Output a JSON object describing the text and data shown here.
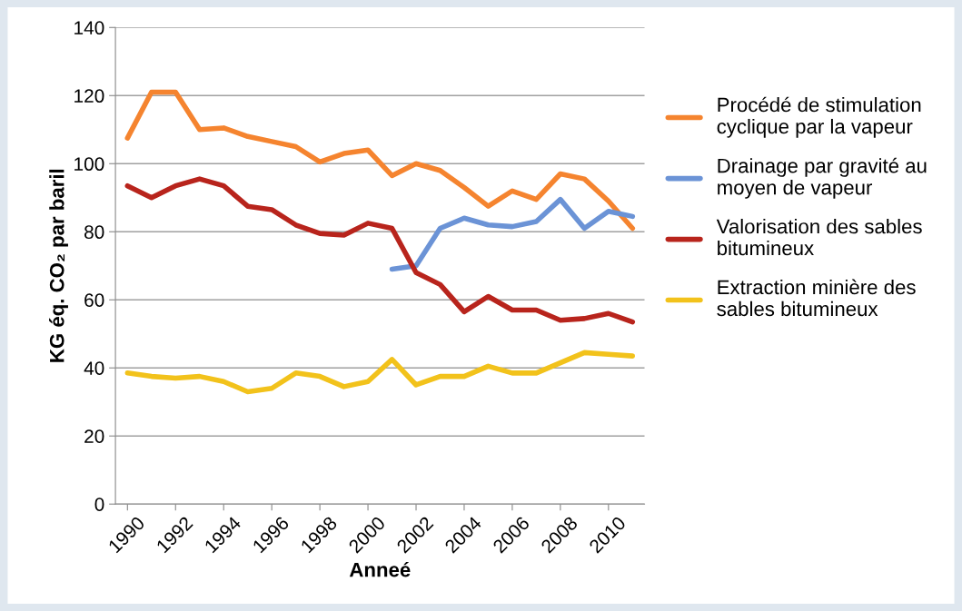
{
  "chart_data": {
    "type": "line",
    "xlabel": "Anneé",
    "ylabel": "KG éq. CO₂ par baril",
    "x": [
      1990,
      1991,
      1992,
      1993,
      1994,
      1995,
      1996,
      1997,
      1998,
      1999,
      2000,
      2001,
      2002,
      2003,
      2004,
      2005,
      2006,
      2007,
      2008,
      2009,
      2010,
      2011
    ],
    "xlim": [
      1989.5,
      2011.5
    ],
    "xticks": [
      1990,
      1992,
      1994,
      1996,
      1998,
      2000,
      2002,
      2004,
      2006,
      2008,
      2010
    ],
    "ylim": [
      0,
      140
    ],
    "yticks": [
      0,
      20,
      40,
      60,
      80,
      100,
      120,
      140
    ],
    "grid": "y",
    "legend": "right",
    "marker": "none",
    "line_style": "solid",
    "series": [
      {
        "name": "Procédé de stimulation cyclique par la vapeur",
        "color": "#f5842f",
        "values": [
          107.5,
          121,
          121,
          110,
          110.5,
          108,
          106.5,
          105,
          100.5,
          103,
          104,
          96.5,
          100,
          98,
          93,
          87.5,
          92,
          89.5,
          97,
          95.5,
          89,
          81
        ]
      },
      {
        "name": "Drainage par gravité au moyen de vapeur",
        "color": "#6b93d6",
        "values": [
          null,
          null,
          null,
          null,
          null,
          null,
          null,
          null,
          null,
          null,
          null,
          69,
          70,
          81,
          84,
          82,
          81.5,
          83,
          89.5,
          81,
          86,
          84.5
        ]
      },
      {
        "name": "Valorisation des sables bitumineux",
        "color": "#b8241c",
        "values": [
          93.5,
          90,
          93.5,
          95.5,
          93.5,
          87.5,
          86.5,
          82,
          79.5,
          79,
          82.5,
          81,
          68,
          64.5,
          56.5,
          61,
          57,
          57,
          54,
          54.5,
          56,
          53.5
        ]
      },
      {
        "name": "Extraction minière des sables bitumineux",
        "color": "#f2c21b",
        "values": [
          38.5,
          37.5,
          37,
          37.5,
          36,
          33,
          34,
          38.5,
          37.5,
          34.5,
          36,
          42.5,
          35,
          37.5,
          37.5,
          40.5,
          38.5,
          38.5,
          41.5,
          44.5,
          44,
          43.5
        ]
      }
    ]
  }
}
